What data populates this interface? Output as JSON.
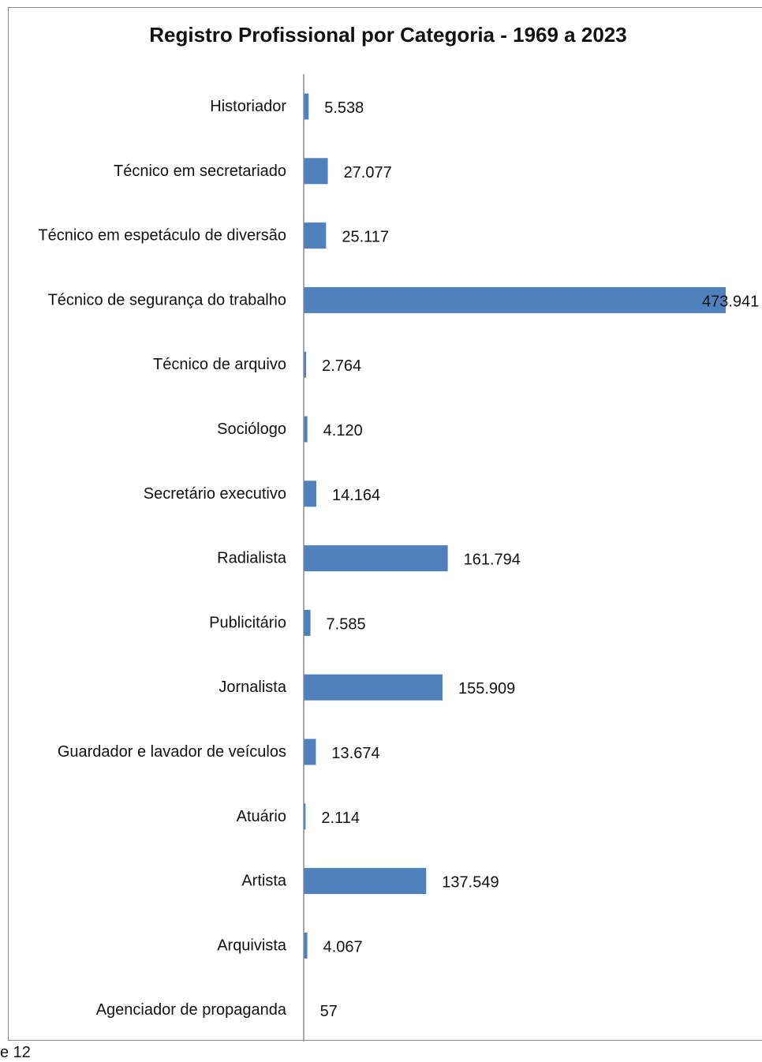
{
  "footer_text": "e 12",
  "chart_data": {
    "type": "bar",
    "orientation": "horizontal",
    "title": "Registro Profissional por Categoria - 1969 a 2023",
    "xlabel": "",
    "ylabel": "",
    "categories": [
      "Historiador",
      "Técnico em secretariado",
      "Técnico em espetáculo de diversão",
      "Técnico de segurança do trabalho",
      "Técnico de arquivo",
      "Sociólogo",
      "Secretário executivo",
      "Radialista",
      "Publicitário",
      "Jornalista",
      "Guardador e lavador de veículos",
      "Atuário",
      "Artista",
      "Arquivista",
      "Agenciador de propaganda"
    ],
    "values": [
      5538,
      27077,
      25117,
      473941,
      2764,
      4120,
      14164,
      161794,
      7585,
      155909,
      13674,
      2114,
      137549,
      4067,
      57
    ],
    "value_labels": [
      "5.538",
      "27.077",
      "25.117",
      "473.941",
      "2.764",
      "4.120",
      "14.164",
      "161.794",
      "7.585",
      "155.909",
      "13.674",
      "2.114",
      "137.549",
      "4.067",
      "57"
    ],
    "bar_color": "#4f81bd",
    "grid": false,
    "legend": "none"
  }
}
